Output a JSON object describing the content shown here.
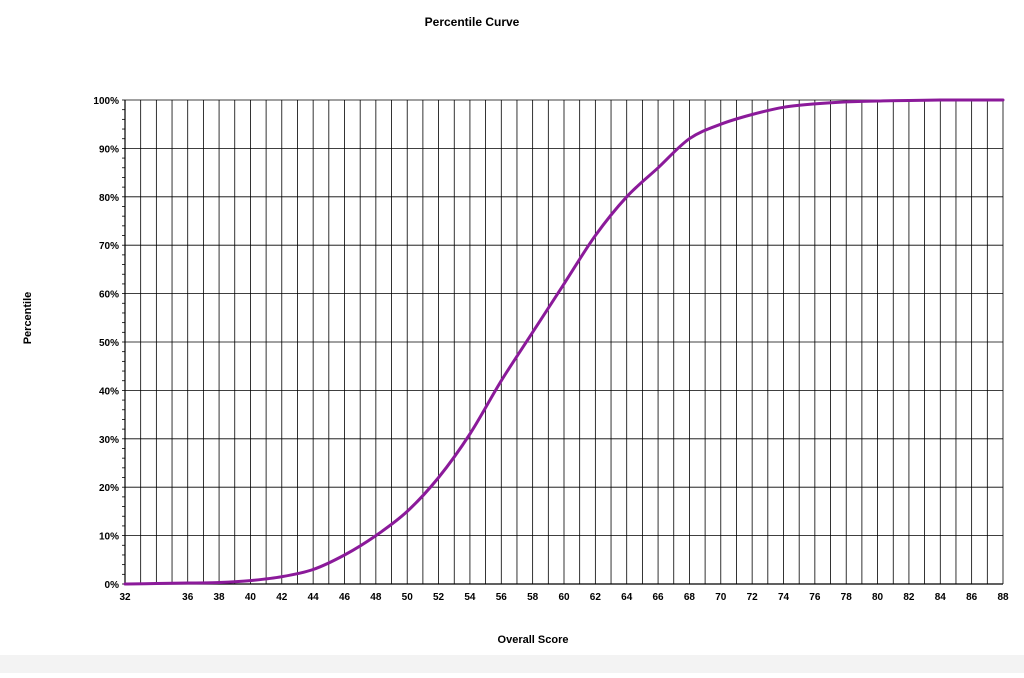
{
  "chart_data": {
    "type": "line",
    "title": "Percentile Curve",
    "xlabel": "Overall Score",
    "ylabel": "Percentile",
    "xlim": [
      32,
      88
    ],
    "ylim": [
      0,
      100
    ],
    "x_ticks": [
      "32",
      "36",
      "38",
      "40",
      "42",
      "44",
      "46",
      "48",
      "50",
      "52",
      "54",
      "56",
      "58",
      "60",
      "62",
      "64",
      "66",
      "68",
      "70",
      "72",
      "74",
      "76",
      "78",
      "80",
      "82",
      "84",
      "86",
      "88"
    ],
    "y_ticks": [
      "0%",
      "10%",
      "20%",
      "30%",
      "40%",
      "50%",
      "60%",
      "70%",
      "80%",
      "90%",
      "100%"
    ],
    "grid": true,
    "legend": "none",
    "line_color": "#8b1a9a",
    "series": [
      {
        "x": [
          32,
          34,
          36,
          38,
          40,
          42,
          44,
          46,
          48,
          50,
          52,
          54,
          56,
          58,
          60,
          62,
          64,
          66,
          68,
          70,
          72,
          74,
          76,
          78,
          80,
          82,
          84,
          86,
          88
        ],
        "values": [
          0,
          0.1,
          0.2,
          0.3,
          0.7,
          1.5,
          3,
          6,
          10,
          15,
          22,
          31,
          42,
          52,
          62,
          72,
          80,
          86,
          92,
          95,
          97,
          98.5,
          99.2,
          99.6,
          99.8,
          99.9,
          100,
          100,
          100
        ]
      }
    ]
  }
}
